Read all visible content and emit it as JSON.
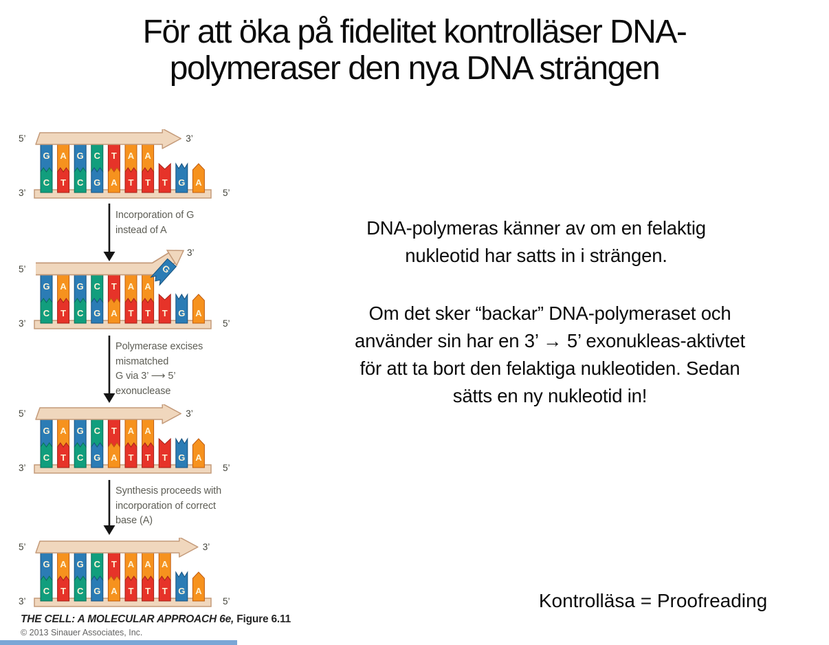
{
  "title": {
    "line1": "För att öka på fidelitet kontrolläser DNA-",
    "line2": "polymeraser den nya DNA strängen"
  },
  "right_panel": {
    "para1": "DNA-polymeras känner av om en felaktig\nnukleotid har satts in i strängen.",
    "para2": "Om det sker “backar” DNA-polymeraset och\nanvänder sin har en 3’ → 5’ exonukleas-aktivtet\nför att ta bort den felaktiga nukleotiden. Sedan\nsätts en ny nukleotid in!",
    "equivalence": "Kontrolläsa = Proofreading"
  },
  "figure": {
    "base_colors": {
      "A": "#f6921e",
      "T": "#e63329",
      "G": "#2b7cb5",
      "C": "#119e7d"
    },
    "base_dark_colors": {
      "A": "#c05c10",
      "T": "#a32218",
      "G": "#17517e",
      "C": "#0a6e57"
    },
    "strand_fill": "#f0d7bd",
    "strand_outline": "#c49a79",
    "letter_color": "#fdf3d7",
    "step_label_color": "#5d5d55",
    "step_arrow_color": "#151515",
    "prime_label_color": "#44443b",
    "panels": [
      {
        "name": "initial-strand",
        "top_strand": [
          "G",
          "A",
          "G",
          "C",
          "T",
          "A",
          "A"
        ],
        "template_strand": [
          "C",
          "T",
          "C",
          "G",
          "A",
          "T",
          "T",
          "T",
          "G",
          "A"
        ],
        "variant": "straight",
        "labels": {
          "top_left": "5’",
          "top_right": "3’",
          "bottom_left": "3’",
          "bottom_right": "5’"
        }
      },
      {
        "name": "mismatch-incorporated",
        "top_strand": [
          "G",
          "A",
          "G",
          "C",
          "T",
          "A",
          "A"
        ],
        "floating_base": "G",
        "template_strand": [
          "C",
          "T",
          "C",
          "G",
          "A",
          "T",
          "T",
          "T",
          "G",
          "A"
        ],
        "variant": "bent",
        "labels": {
          "top_left": "5’",
          "top_right": "3’",
          "bottom_left": "3’",
          "bottom_right": "5’"
        }
      },
      {
        "name": "mismatch-excised",
        "top_strand": [
          "G",
          "A",
          "G",
          "C",
          "T",
          "A",
          "A"
        ],
        "template_strand": [
          "C",
          "T",
          "C",
          "G",
          "A",
          "T",
          "T",
          "T",
          "G",
          "A"
        ],
        "variant": "straight",
        "labels": {
          "top_left": "5’",
          "top_right": "3’",
          "bottom_left": "3’",
          "bottom_right": "5’"
        }
      },
      {
        "name": "corrected-strand",
        "top_strand": [
          "G",
          "A",
          "G",
          "C",
          "T",
          "A",
          "A",
          "A"
        ],
        "template_strand": [
          "C",
          "T",
          "C",
          "G",
          "A",
          "T",
          "T",
          "T",
          "G",
          "A"
        ],
        "variant": "straight",
        "labels": {
          "top_left": "5’",
          "top_right": "3’",
          "bottom_left": "3’",
          "bottom_right": "5’"
        }
      }
    ],
    "step_labels": [
      {
        "lines": [
          "Incorporation of G",
          "instead of A"
        ]
      },
      {
        "lines": [
          "Polymerase excises",
          "mismatched",
          "G via 3’ ⟶ 5’",
          "exonuclease"
        ]
      },
      {
        "lines": [
          "Synthesis proceeds with",
          "incorporation of correct",
          "base (A)"
        ]
      }
    ],
    "credit": {
      "book": "THE CELL: A MOLECULAR APPROACH 6e,",
      "figure": " Figure 6.11",
      "copyright": "© 2013 Sinauer Associates, Inc."
    }
  },
  "accents": {
    "bottom_bar_color": "#7aa6d6"
  }
}
